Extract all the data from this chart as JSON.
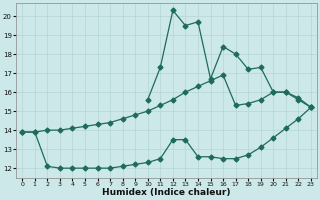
{
  "xlabel": "Humidex (Indice chaleur)",
  "background_color": "#cce8e8",
  "line_color": "#1e6b5e",
  "grid_color": "#b8d8d8",
  "xlim": [
    -0.5,
    23.5
  ],
  "ylim": [
    11.5,
    20.7
  ],
  "xticks": [
    0,
    1,
    2,
    3,
    4,
    5,
    6,
    7,
    8,
    9,
    10,
    11,
    12,
    13,
    14,
    15,
    16,
    17,
    18,
    19,
    20,
    21,
    22,
    23
  ],
  "yticks": [
    12,
    13,
    14,
    15,
    16,
    17,
    18,
    19,
    20
  ],
  "series_peak_x": [
    10,
    11,
    12,
    13,
    14,
    15,
    16,
    17,
    18,
    19,
    20,
    21,
    22,
    23
  ],
  "series_peak_y": [
    15.6,
    17.3,
    20.3,
    19.5,
    19.7,
    16.7,
    18.4,
    18.0,
    17.2,
    17.3,
    16.0,
    16.0,
    15.6,
    15.2
  ],
  "series_upper_x": [
    0,
    1,
    2,
    3,
    4,
    5,
    6,
    7,
    8,
    9,
    10,
    11,
    12,
    13,
    14,
    15,
    16,
    17,
    18,
    19,
    20,
    21,
    22,
    23
  ],
  "series_upper_y": [
    13.9,
    13.9,
    14.0,
    14.0,
    14.1,
    14.2,
    14.3,
    14.4,
    14.6,
    14.8,
    15.0,
    15.3,
    15.6,
    16.0,
    16.3,
    16.6,
    16.9,
    15.3,
    15.4,
    15.6,
    16.0,
    16.0,
    15.7,
    15.2
  ],
  "series_lower_x": [
    0,
    1,
    2,
    3,
    4,
    5,
    6,
    7,
    8,
    9,
    10,
    11,
    12,
    13,
    14,
    15,
    16,
    17,
    18,
    19,
    20,
    21,
    22,
    23
  ],
  "series_lower_y": [
    13.9,
    13.9,
    12.1,
    12.0,
    12.0,
    12.0,
    12.0,
    12.0,
    12.1,
    12.2,
    12.3,
    12.5,
    13.5,
    13.5,
    12.6,
    12.6,
    12.5,
    12.5,
    12.7,
    13.1,
    13.6,
    14.1,
    14.6,
    15.2
  ],
  "marker_size": 2.5,
  "linewidth": 0.9
}
